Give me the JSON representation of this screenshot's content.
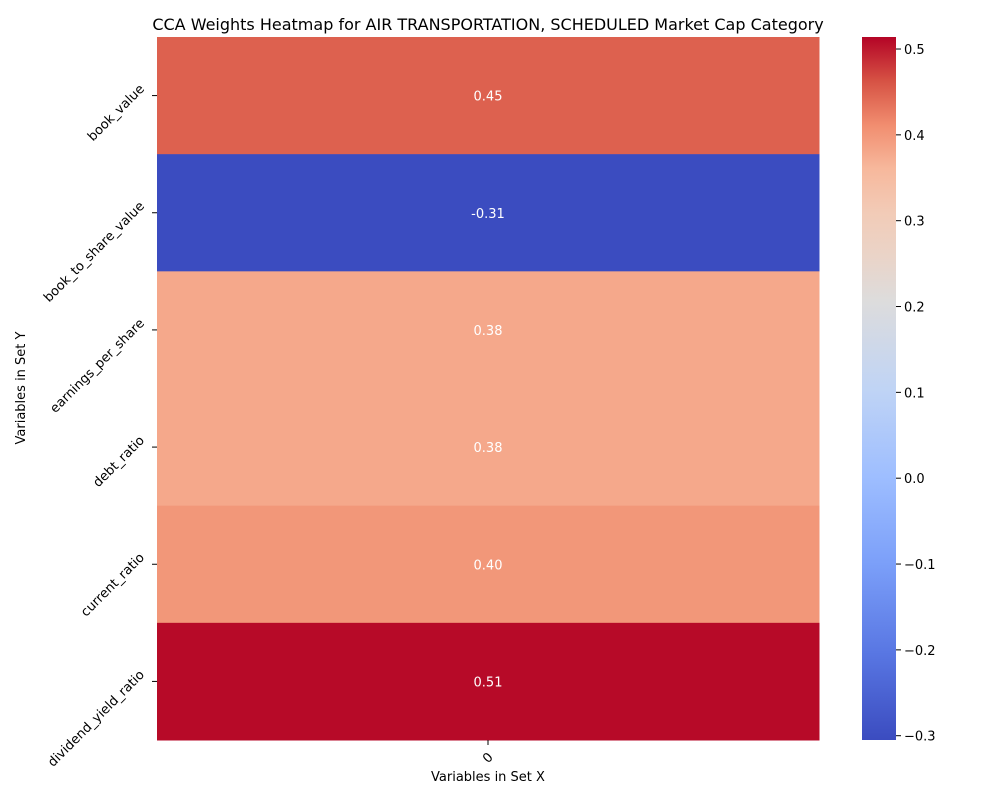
{
  "chart_data": {
    "type": "heatmap",
    "title": "CCA Weights Heatmap for AIR TRANSPORTATION, SCHEDULED Market Cap Category",
    "xlabel": "Variables in Set X",
    "ylabel": "Variables in Set Y",
    "x_categories": [
      "0"
    ],
    "y_categories": [
      "book_value",
      "book_to_share_value",
      "earnings_per_share",
      "debt_ratio",
      "current_ratio",
      "dividend_yield_ratio"
    ],
    "values": [
      [
        0.45
      ],
      [
        -0.31
      ],
      [
        0.38
      ],
      [
        0.38
      ],
      [
        0.4
      ],
      [
        0.51
      ]
    ],
    "annotations": [
      "0.45",
      "-0.31",
      "0.38",
      "0.38",
      "0.40",
      "0.51"
    ],
    "colormap": "coolwarm",
    "vmin": -0.305,
    "vmax": 0.514,
    "colorbar_ticks": [
      0.5,
      0.4,
      0.3,
      0.2,
      0.1,
      0.0,
      -0.1,
      -0.2,
      -0.3
    ],
    "colorbar_tick_labels": [
      "0.5",
      "0.4",
      "0.3",
      "0.2",
      "0.1",
      "0.0",
      "−0.1",
      "−0.2",
      "−0.3"
    ]
  }
}
